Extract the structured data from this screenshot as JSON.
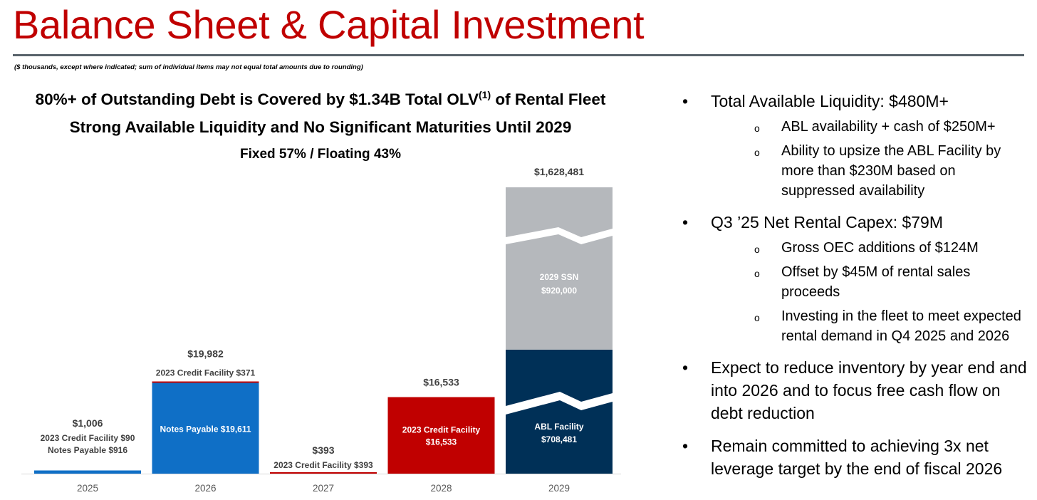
{
  "page": {
    "title": "Balance Sheet & Capital Investment",
    "footnote": "($ thousands, except where indicated; sum of individual items may not equal total amounts due to rounding)"
  },
  "headlines": {
    "line1_main": "80%+ of Outstanding Debt is Covered by $1.34B Total OLV",
    "line1_sup": "(1)",
    "line1_tail": " of Rental Fleet",
    "line2": "Strong Available Liquidity and No Significant Maturities Until 2029",
    "line3": "Fixed 57% / Floating 43%"
  },
  "colors": {
    "title": "#c00000",
    "notes_payable": "#0f6fc6",
    "credit_2023": "#c00000",
    "abl": "#003057",
    "ssn": "#b5b8bc",
    "label_text": "#404040"
  },
  "chart_data": {
    "type": "bar",
    "stacked": true,
    "axis_break": true,
    "categories": [
      "2025",
      "2026",
      "2027",
      "2028",
      "2029"
    ],
    "totals": [
      "$1,006",
      "$19,982",
      "$393",
      "$16,533",
      "$1,628,481"
    ],
    "series": [
      {
        "name": "Notes Payable",
        "values": [
          916,
          19611,
          0,
          0,
          0
        ]
      },
      {
        "name": "2023 Credit Facility",
        "values": [
          90,
          371,
          393,
          16533,
          0
        ]
      },
      {
        "name": "ABL Facility",
        "values": [
          0,
          0,
          0,
          0,
          708481
        ]
      },
      {
        "name": "2029 SSN",
        "values": [
          0,
          0,
          0,
          0,
          920000
        ]
      }
    ],
    "labels": {
      "y2025_credit": "2023 Credit Facility  $90",
      "y2025_notes": "Notes Payable  $916",
      "y2026_credit": "2023 Credit Facility  $371",
      "y2026_notes": "Notes Payable  $19,611",
      "y2027_credit": "2023 Credit Facility  $393",
      "y2028_credit_name": "2023 Credit Facility",
      "y2028_credit_value": "$16,533",
      "y2029_ssn_name": "2029 SSN",
      "y2029_ssn_value": "$920,000",
      "y2029_abl_name": "ABL Facility",
      "y2029_abl_value": "$708,481"
    }
  },
  "bullets": [
    {
      "text": "Total Available Liquidity: $480M+",
      "sub": [
        "ABL availability + cash of $250M+",
        "Ability to upsize the ABL Facility by more than $230M based on suppressed availability"
      ]
    },
    {
      "text": "Q3 ’25 Net Rental Capex: $79M",
      "sub": [
        "Gross OEC additions of $124M",
        "Offset by $45M of rental sales proceeds",
        "Investing in the fleet to meet expected rental demand in Q4 2025 and 2026"
      ]
    },
    {
      "text": "Expect to reduce inventory by year end and into 2026 and to focus free cash flow on debt reduction",
      "sub": []
    },
    {
      "text": "Remain committed to achieving 3x net leverage target by the end of fiscal 2026",
      "sub": []
    }
  ]
}
